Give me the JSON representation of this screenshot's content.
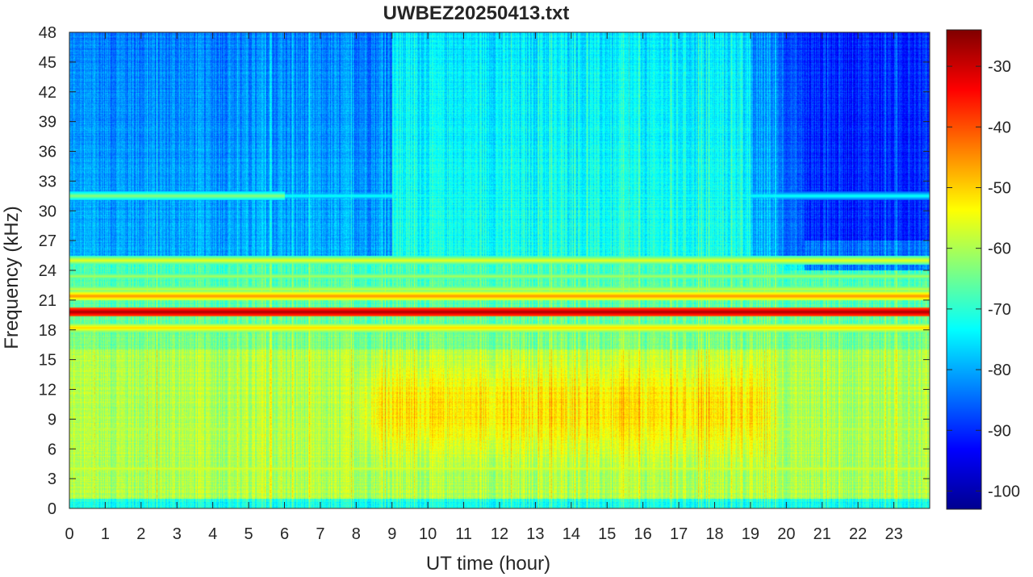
{
  "chart_data": {
    "type": "heatmap",
    "title": "UWBEZ20250413.txt",
    "xlabel": "UT time (hour)",
    "ylabel": "Frequency (kHz)",
    "xlim": [
      0,
      24
    ],
    "ylim": [
      0,
      48
    ],
    "x_ticks": [
      "0",
      "1",
      "2",
      "3",
      "4",
      "5",
      "6",
      "7",
      "8",
      "9",
      "10",
      "11",
      "12",
      "13",
      "14",
      "15",
      "16",
      "17",
      "18",
      "19",
      "20",
      "21",
      "22",
      "23"
    ],
    "y_ticks": [
      "0",
      "3",
      "6",
      "9",
      "12",
      "15",
      "18",
      "21",
      "24",
      "27",
      "30",
      "33",
      "36",
      "39",
      "42",
      "45",
      "48"
    ],
    "colorbar": {
      "colormap": "jet",
      "range": [
        -103,
        -24
      ],
      "ticks": [
        "-100",
        "-90",
        "-80",
        "-70",
        "-60",
        "-50",
        "-40",
        "-30"
      ]
    },
    "description": {
      "background_above_25kHz_dB": -80,
      "background_0_to_16kHz_dB": -60,
      "daytime_enhancement_hours": [
        8.5,
        19.5
      ],
      "daytime_enhancement_freq_kHz": [
        4,
        16
      ],
      "daytime_peak_dB": -55,
      "night_minimum_hours": [
        20.5,
        24
      ],
      "night_minimum_freq_kHz": [
        24,
        48
      ],
      "night_minimum_dB": -90
    },
    "transmitter_lines": [
      {
        "freq_kHz": 19.8,
        "level_dB": -27
      },
      {
        "freq_kHz": 21.4,
        "level_dB": -45
      },
      {
        "freq_kHz": 18.2,
        "level_dB": -50
      },
      {
        "freq_kHz": 25.0,
        "level_dB": -55
      },
      {
        "freq_kHz": 22.1,
        "level_dB": -58
      },
      {
        "freq_kHz": 23.4,
        "level_dB": -60
      },
      {
        "freq_kHz": 31.5,
        "level_dB": -62
      },
      {
        "freq_kHz": 4.0,
        "level_dB": -56
      },
      {
        "freq_kHz": 8.0,
        "level_dB": -58
      }
    ]
  }
}
